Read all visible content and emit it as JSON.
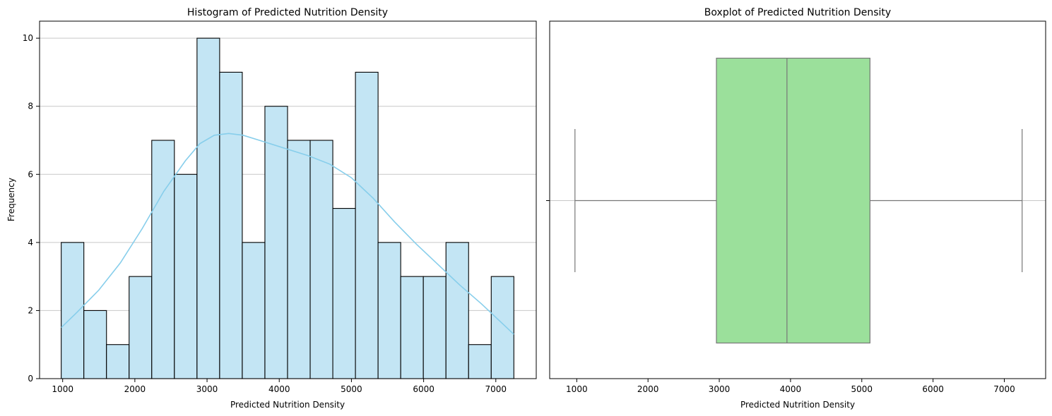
{
  "chart_data": [
    {
      "type": "histogram",
      "title": "Histogram of Predicted Nutrition Density",
      "xlabel": "Predicted Nutrition Density",
      "ylabel": "Frequency",
      "xlim": [
        680,
        7560
      ],
      "ylim": [
        0,
        10.5
      ],
      "xticks": [
        1000,
        2000,
        3000,
        4000,
        5000,
        6000,
        7000
      ],
      "yticks": [
        0,
        2,
        4,
        6,
        8,
        10
      ],
      "grid": "horizontal",
      "bar_color": "#c3e5f4",
      "edge_color": "#000000",
      "kde_color": "#87ceeb",
      "bins": {
        "start": 980,
        "width": 313.5,
        "counts": [
          4,
          2,
          1,
          3,
          7,
          6,
          10,
          9,
          4,
          8,
          7,
          7,
          5,
          9,
          4,
          3,
          3,
          4,
          1,
          3
        ]
      },
      "kde": {
        "x": [
          980,
          1200,
          1500,
          1800,
          2100,
          2400,
          2700,
          2900,
          3100,
          3300,
          3500,
          3800,
          4100,
          4400,
          4700,
          5000,
          5300,
          5600,
          5900,
          6200,
          6500,
          6800,
          7100,
          7250
        ],
        "y": [
          1.5,
          1.95,
          2.6,
          3.4,
          4.4,
          5.5,
          6.4,
          6.9,
          7.15,
          7.2,
          7.15,
          6.95,
          6.75,
          6.55,
          6.3,
          5.9,
          5.3,
          4.6,
          3.95,
          3.35,
          2.75,
          2.2,
          1.6,
          1.3
        ]
      }
    },
    {
      "type": "boxplot",
      "title": "Boxplot of Predicted Nutrition Density",
      "xlabel": "Predicted Nutrition Density",
      "xlim": [
        620,
        7580
      ],
      "xticks": [
        1000,
        2000,
        3000,
        4000,
        5000,
        6000,
        7000
      ],
      "grid": "horizontal",
      "box_color": "#9be09b",
      "line_color": "#777777",
      "stats": {
        "whisker_low": 975,
        "q1": 2960,
        "median": 3950,
        "q3": 5115,
        "whisker_high": 7250
      }
    }
  ]
}
